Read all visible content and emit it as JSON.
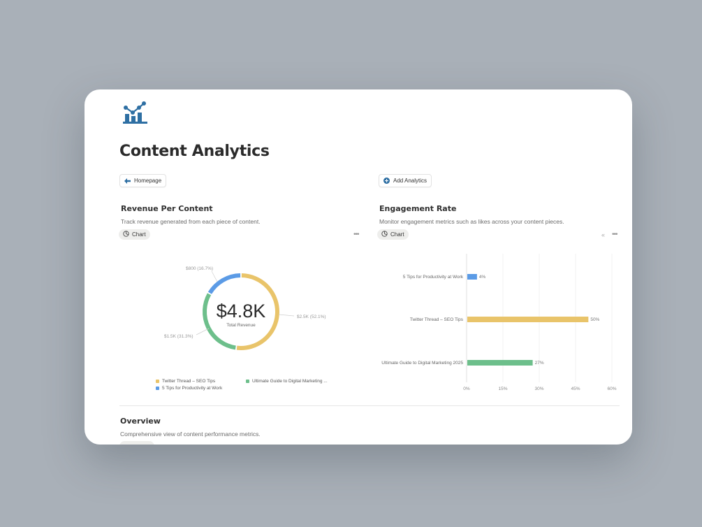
{
  "page": {
    "title": "Content Analytics",
    "icon": "analytics-chart-icon"
  },
  "buttons": {
    "homepage": "Homepage",
    "add_analytics": "Add Analytics"
  },
  "revenue_section": {
    "title": "Revenue Per Content",
    "description": "Track revenue generated from each piece of content.",
    "view_label": "Chart",
    "center_value": "$4.8K",
    "center_label": "Total Revenue",
    "slice_labels": [
      "$2.5K (52.1%)",
      "$1.5K (31.3%)",
      "$800 (16.7%)"
    ],
    "legend": [
      "Twitter Thread – SEO Tips",
      "Ultimate Guide to Digital Marketing ...",
      "5 Tips for Productivity at Work"
    ]
  },
  "engagement_section": {
    "title": "Engagement Rate",
    "description": "Monitor engagement metrics such as likes across your content pieces.",
    "view_label": "Chart",
    "x_ticks": [
      "0%",
      "15%",
      "30%",
      "45%",
      "60%"
    ]
  },
  "overview_section": {
    "title": "Overview",
    "description": "Comprehensive view of content performance metrics."
  },
  "colors": {
    "yellow": "#e9c46a",
    "green": "#6dbf8b",
    "blue": "#5b9be6",
    "accent": "#2e6fa3"
  },
  "chart_data": [
    {
      "type": "pie",
      "title": "Revenue Per Content",
      "categories": [
        "Twitter Thread – SEO Tips",
        "Ultimate Guide to Digital Marketing 2025",
        "5 Tips for Productivity at Work"
      ],
      "values": [
        2500,
        1500,
        800
      ],
      "percent": [
        52.1,
        31.3,
        16.7
      ],
      "colors": [
        "#e9c46a",
        "#6dbf8b",
        "#5b9be6"
      ],
      "legend": "bottom"
    },
    {
      "type": "bar",
      "orientation": "horizontal",
      "title": "Engagement Rate",
      "categories": [
        "5 Tips for Productivity at Work",
        "Twitter Thread – SEO Tips",
        "Ultimate Guide to Digital Marketing 2025"
      ],
      "values": [
        4,
        50,
        27
      ],
      "value_labels": [
        "4%",
        "50%",
        "27%"
      ],
      "colors": [
        "#5b9be6",
        "#e9c46a",
        "#6dbf8b"
      ],
      "xlim": [
        0,
        60
      ],
      "grid": true
    }
  ]
}
